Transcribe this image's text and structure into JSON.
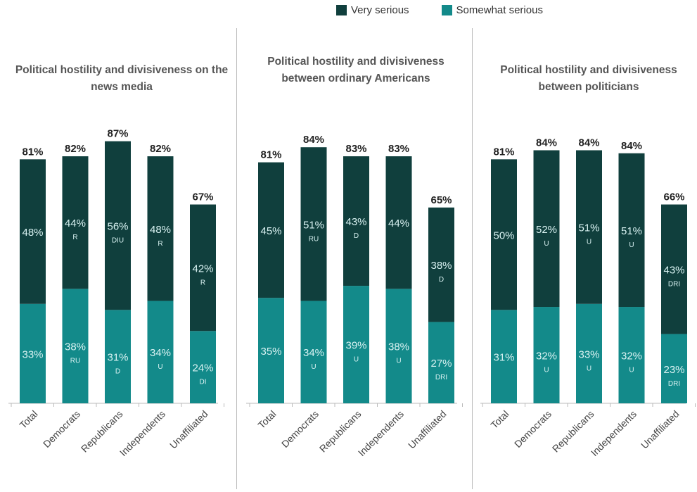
{
  "legend": {
    "very_label": "Very serious",
    "somewhat_label": "Somewhat serious",
    "very_color": "#103f3d",
    "somewhat_color": "#138a8a"
  },
  "chart_data": [
    {
      "type": "bar",
      "stacked": true,
      "title": "Political hostility and divisiveness on the news media",
      "categories": [
        "Total",
        "Democrats",
        "Republicans",
        "Independents",
        "Unaffiliated"
      ],
      "totals": [
        "81%",
        "82%",
        "87%",
        "82%",
        "67%"
      ],
      "series": [
        {
          "name": "Somewhat serious",
          "values": [
            33,
            38,
            31,
            34,
            24
          ],
          "labels": [
            "33%",
            "38%",
            "31%",
            "34%",
            "24%"
          ],
          "sig": [
            "",
            "RU",
            "D",
            "U",
            "DI"
          ]
        },
        {
          "name": "Very serious",
          "values": [
            48,
            44,
            56,
            48,
            42
          ],
          "labels": [
            "48%",
            "44%",
            "56%",
            "48%",
            "42%"
          ],
          "sig": [
            "",
            "R",
            "DIU",
            "R",
            "R"
          ]
        }
      ],
      "ylim": [
        0,
        100
      ]
    },
    {
      "type": "bar",
      "stacked": true,
      "title": "Political hostility and divisiveness between ordinary Americans",
      "categories": [
        "Total",
        "Democrats",
        "Republicans",
        "Independents",
        "Unaffiliated"
      ],
      "totals": [
        "81%",
        "84%",
        "83%",
        "83%",
        "65%"
      ],
      "series": [
        {
          "name": "Somewhat serious",
          "values": [
            35,
            34,
            39,
            38,
            27
          ],
          "labels": [
            "35%",
            "34%",
            "39%",
            "38%",
            "27%"
          ],
          "sig": [
            "",
            "U",
            "U",
            "U",
            "DRI"
          ]
        },
        {
          "name": "Very serious",
          "values": [
            45,
            51,
            43,
            44,
            38
          ],
          "labels": [
            "45%",
            "51%",
            "43%",
            "44%",
            "38%"
          ],
          "sig": [
            "",
            "RU",
            "D",
            "",
            "D"
          ]
        }
      ],
      "ylim": [
        0,
        100
      ]
    },
    {
      "type": "bar",
      "stacked": true,
      "title": "Political hostility and divisiveness between politicians",
      "categories": [
        "Total",
        "Democrats",
        "Republicans",
        "Independents",
        "Unaffiliated"
      ],
      "totals": [
        "81%",
        "84%",
        "84%",
        "84%",
        "66%"
      ],
      "series": [
        {
          "name": "Somewhat serious",
          "values": [
            31,
            32,
            33,
            32,
            23
          ],
          "labels": [
            "31%",
            "32%",
            "33%",
            "32%",
            "23%"
          ],
          "sig": [
            "",
            "U",
            "U",
            "U",
            "DRI"
          ]
        },
        {
          "name": "Very serious",
          "values": [
            50,
            52,
            51,
            51,
            43
          ],
          "labels": [
            "50%",
            "52%",
            "51%",
            "51%",
            "43%"
          ],
          "sig": [
            "",
            "U",
            "U",
            "U",
            "DRI"
          ]
        }
      ],
      "ylim": [
        0,
        100
      ]
    }
  ]
}
